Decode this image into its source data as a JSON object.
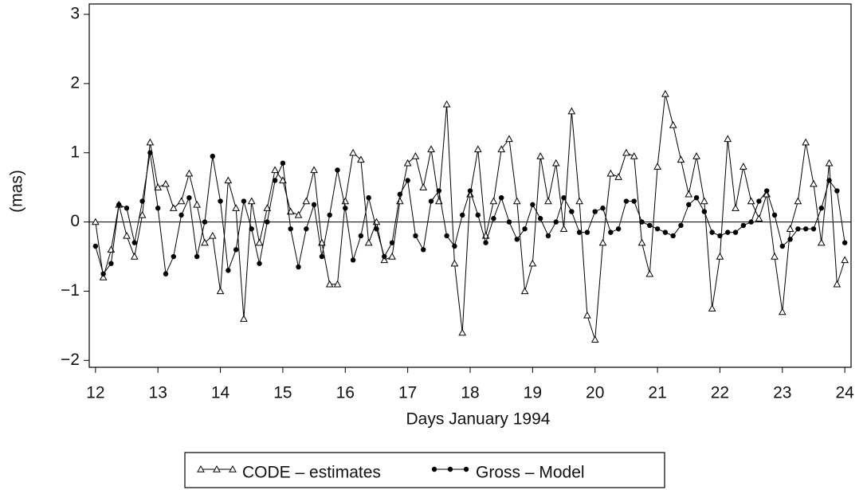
{
  "chart_data": {
    "type": "line",
    "x_label": "Days January 1994",
    "y_label": "(mas)",
    "x": [
      12,
      12.125,
      12.25,
      12.375,
      12.5,
      12.625,
      12.75,
      12.875,
      13,
      13.125,
      13.25,
      13.375,
      13.5,
      13.625,
      13.75,
      13.875,
      14,
      14.125,
      14.25,
      14.375,
      14.5,
      14.625,
      14.75,
      14.875,
      15,
      15.125,
      15.25,
      15.375,
      15.5,
      15.625,
      15.75,
      15.875,
      16,
      16.125,
      16.25,
      16.375,
      16.5,
      16.625,
      16.75,
      16.875,
      17,
      17.125,
      17.25,
      17.375,
      17.5,
      17.625,
      17.75,
      17.875,
      18,
      18.125,
      18.25,
      18.375,
      18.5,
      18.625,
      18.75,
      18.875,
      19,
      19.125,
      19.25,
      19.375,
      19.5,
      19.625,
      19.75,
      19.875,
      20,
      20.125,
      20.25,
      20.375,
      20.5,
      20.625,
      20.75,
      20.875,
      21,
      21.125,
      21.25,
      21.375,
      21.5,
      21.625,
      21.75,
      21.875,
      22,
      22.125,
      22.25,
      22.375,
      22.5,
      22.625,
      22.75,
      22.875,
      23,
      23.125,
      23.25,
      23.375,
      23.5,
      23.625,
      23.75,
      23.875,
      24
    ],
    "series": [
      {
        "name": "CODE – estimates",
        "color": "#000000",
        "marker": "triangle",
        "values": [
          0,
          -0.8,
          -0.4,
          0.25,
          -0.2,
          -0.5,
          0.1,
          1.15,
          0.5,
          0.55,
          0.2,
          0.3,
          0.7,
          0.25,
          -0.3,
          -0.2,
          -1.0,
          0.6,
          0.2,
          -1.4,
          0.3,
          -0.3,
          0.2,
          0.75,
          0.6,
          0.15,
          0.1,
          0.3,
          0.75,
          -0.3,
          -0.9,
          -0.9,
          0.3,
          1.0,
          0.9,
          -0.3,
          0,
          -0.55,
          -0.5,
          0.3,
          0.85,
          0.95,
          0.5,
          1.05,
          0.3,
          1.7,
          -0.6,
          -1.6,
          0.4,
          1.05,
          -0.2,
          0.3,
          1.05,
          1.2,
          0.3,
          -1.0,
          -0.6,
          0.95,
          0.3,
          0.85,
          -0.1,
          1.6,
          0.3,
          -1.35,
          -1.7,
          -0.3,
          0.7,
          0.65,
          1.0,
          0.95,
          -0.3,
          -0.75,
          0.8,
          1.85,
          1.4,
          0.9,
          0.4,
          0.95,
          0.3,
          -1.25,
          -0.5,
          1.2,
          0.2,
          0.8,
          0.3,
          0.05,
          0.4,
          -0.5,
          -1.3,
          -0.1,
          0.3,
          1.15,
          0.55,
          -0.3,
          0.85,
          -0.9,
          -0.55
        ]
      },
      {
        "name": "Gross – Model",
        "color": "#000000",
        "marker": "circle",
        "values": [
          -0.35,
          -0.75,
          -0.6,
          0.25,
          0.2,
          -0.3,
          0.3,
          1.0,
          0.2,
          -0.75,
          -0.5,
          0.1,
          0.35,
          -0.5,
          0,
          0.95,
          0.3,
          -0.7,
          -0.4,
          0.3,
          -0.1,
          -0.6,
          0,
          0.6,
          0.85,
          -0.1,
          -0.65,
          -0.1,
          0.25,
          -0.5,
          0.1,
          0.75,
          0.2,
          -0.55,
          -0.2,
          0.35,
          -0.1,
          -0.5,
          -0.3,
          0.4,
          0.6,
          -0.2,
          -0.4,
          0.3,
          0.45,
          -0.2,
          -0.35,
          0.1,
          0.45,
          0.1,
          -0.3,
          0.05,
          0.35,
          0,
          -0.25,
          -0.1,
          0.25,
          0.05,
          -0.2,
          0,
          0.35,
          0.15,
          -0.15,
          -0.15,
          0.15,
          0.2,
          -0.15,
          -0.1,
          0.3,
          0.3,
          0,
          -0.05,
          -0.1,
          -0.15,
          -0.2,
          -0.05,
          0.25,
          0.35,
          0.15,
          -0.15,
          -0.2,
          -0.15,
          -0.15,
          -0.05,
          0,
          0.3,
          0.45,
          0.1,
          -0.35,
          -0.25,
          -0.1,
          -0.1,
          -0.1,
          0.2,
          0.6,
          0.45,
          -0.3
        ]
      }
    ],
    "xlim": [
      11.9,
      24.1
    ],
    "ylim": [
      -2.1,
      3.15
    ],
    "xticks": [
      12,
      13,
      14,
      15,
      16,
      17,
      18,
      19,
      20,
      21,
      22,
      23,
      24
    ],
    "yticks": [
      {
        "value": -2,
        "label": "−2"
      },
      {
        "value": -1,
        "label": "−1"
      },
      0,
      1,
      2,
      3
    ],
    "zero_line": true,
    "legend": "bottom"
  }
}
